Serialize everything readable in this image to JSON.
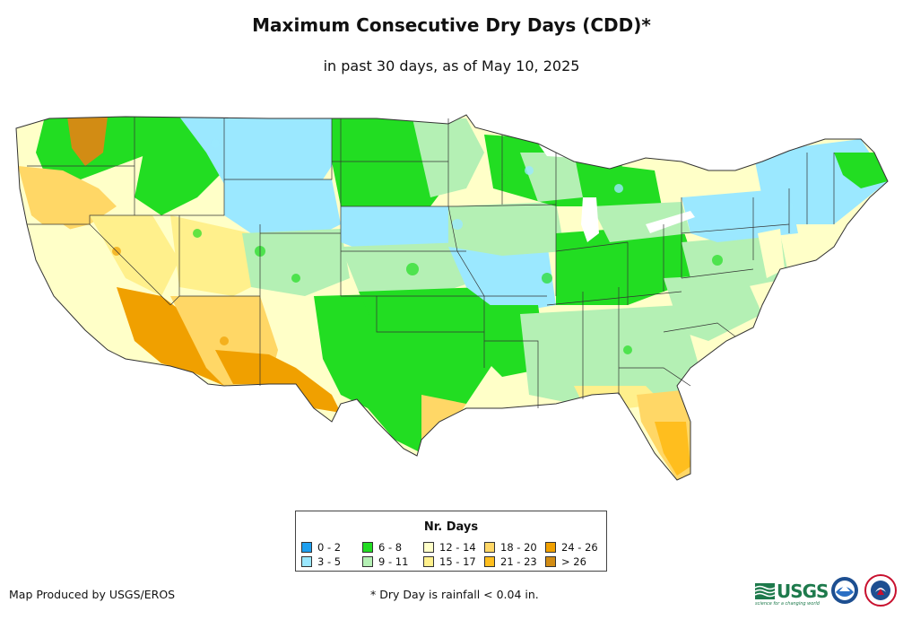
{
  "title": "Maximum Consecutive Dry Days (CDD)*",
  "subtitle": "in past 30 days, as of May 10, 2025",
  "legend": {
    "title": "Nr. Days",
    "items": [
      {
        "label": "0 - 2",
        "color": "#1ea0f0"
      },
      {
        "label": "3 - 5",
        "color": "#9be8ff"
      },
      {
        "label": "6 - 8",
        "color": "#22dd22"
      },
      {
        "label": "9 - 11",
        "color": "#b4f0b4"
      },
      {
        "label": "12 - 14",
        "color": "#ffffc8"
      },
      {
        "label": "15 - 17",
        "color": "#fff08c"
      },
      {
        "label": "18 - 20",
        "color": "#ffd766"
      },
      {
        "label": "21 - 23",
        "color": "#ffbe1e"
      },
      {
        "label": "24 - 26",
        "color": "#f0a000"
      },
      {
        "label": "> 26",
        "color": "#d28c14"
      }
    ]
  },
  "footer": {
    "producer": "Map Produced by USGS/EROS",
    "note": "* Dry Day is rainfall < 0.04 in."
  },
  "logos": {
    "usgs_text": "USGS",
    "usgs_tagline": "science for a changing world",
    "usgs_color": "#1e7a4c",
    "noaa_color": "#1d4f91",
    "nws_color": "#c8102e"
  }
}
